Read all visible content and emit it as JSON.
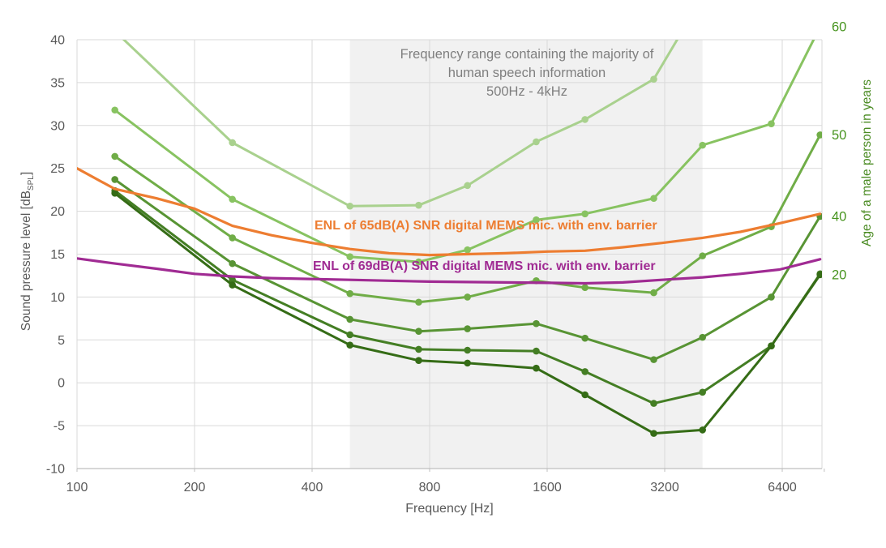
{
  "chart_data": {
    "type": "line",
    "annotation": {
      "line1": "Frequency range containing the majority of",
      "line2": "human speech information",
      "line3": "500Hz - 4kHz"
    },
    "xlabel": "Frequency [Hz]",
    "ylabel_left": {
      "main": "Sound pressure level [dB",
      "sub": "SPL",
      "end": "]"
    },
    "ylabel_right": "Age of a male person in years",
    "x_tick_labels": [
      100,
      200,
      400,
      800,
      1600,
      3200,
      6400
    ],
    "y_tick_labels": [
      40,
      35,
      30,
      25,
      20,
      15,
      10,
      5,
      0,
      -5,
      -10
    ],
    "ylim": [
      -10,
      40
    ],
    "xlim_hz": [
      100,
      8200
    ],
    "shaded_band_hz": [
      500,
      4000
    ],
    "grid": true,
    "frequencies_hz": [
      125,
      250,
      500,
      750,
      1000,
      1500,
      2000,
      3000,
      4000,
      6000,
      8000
    ],
    "age_series": [
      {
        "name": "age-70",
        "color": "#a9d18e",
        "end_label": null,
        "values": [
          41,
          28.0,
          20.6,
          20.7,
          23.0,
          28.1,
          30.7,
          35.4,
          45,
          null,
          null
        ]
      },
      {
        "name": "age-60",
        "color": "#88c361",
        "end_label": "60",
        "values": [
          31.8,
          21.4,
          14.7,
          14.1,
          15.5,
          19.0,
          19.7,
          21.5,
          27.7,
          30.2,
          41.5
        ]
      },
      {
        "name": "age-50",
        "color": "#70ad47",
        "end_label": "50",
        "values": [
          26.4,
          16.9,
          10.4,
          9.4,
          10.0,
          11.9,
          11.1,
          10.5,
          14.8,
          18.2,
          28.9
        ]
      },
      {
        "name": "age-40",
        "color": "#589434",
        "end_label": "40",
        "values": [
          23.7,
          13.9,
          7.4,
          6.0,
          6.3,
          6.9,
          5.2,
          2.7,
          5.3,
          10.0,
          19.4
        ]
      },
      {
        "name": "age-30",
        "color": "#447e24",
        "end_label": null,
        "values": [
          22.4,
          12.0,
          5.6,
          3.9,
          3.8,
          3.7,
          1.3,
          -2.4,
          -1.1,
          4.3,
          12.7
        ]
      },
      {
        "name": "age-20",
        "color": "#356c16",
        "end_label": "20",
        "values": [
          22.1,
          11.4,
          4.4,
          2.6,
          2.3,
          1.7,
          -1.4,
          -5.9,
          -5.5,
          4.3,
          12.6
        ]
      }
    ],
    "mic_series": [
      {
        "name": "enl-65",
        "color": "#ED7D31",
        "label": "ENL of 65dB(A) SNR digital MEMS mic. with env. barrier",
        "x": [
          100,
          125,
          160,
          200,
          250,
          315,
          400,
          500,
          630,
          800,
          1000,
          1250,
          1600,
          2000,
          2500,
          3150,
          4000,
          5000,
          6300,
          8000
        ],
        "values": [
          25.0,
          22.6,
          21.5,
          20.3,
          18.3,
          17.2,
          16.3,
          15.6,
          15.1,
          14.9,
          15.0,
          15.1,
          15.3,
          15.4,
          15.8,
          16.3,
          16.9,
          17.6,
          18.6,
          19.7
        ]
      },
      {
        "name": "enl-69",
        "color": "#A02B93",
        "label": "ENL of 69dB(A) SNR digital MEMS mic. with env. barrier",
        "x": [
          100,
          125,
          160,
          200,
          250,
          315,
          400,
          500,
          630,
          800,
          1000,
          1250,
          1600,
          2000,
          2500,
          3150,
          4000,
          5000,
          6300,
          8000
        ],
        "values": [
          14.5,
          13.9,
          13.3,
          12.7,
          12.4,
          12.2,
          12.1,
          12.0,
          11.9,
          11.8,
          11.75,
          11.7,
          11.65,
          11.6,
          11.7,
          12.0,
          12.3,
          12.7,
          13.2,
          14.4
        ]
      }
    ],
    "style": {
      "grid_color": "#d9d9d9",
      "axis_line_color": "#bfbfbf",
      "shaded_band_color": "#f1f1f1",
      "tick_text_color": "#595959",
      "annotation_color": "#7f7f7f",
      "end_label_color": "#47941f",
      "right_title_color": "#4a8b22"
    }
  }
}
